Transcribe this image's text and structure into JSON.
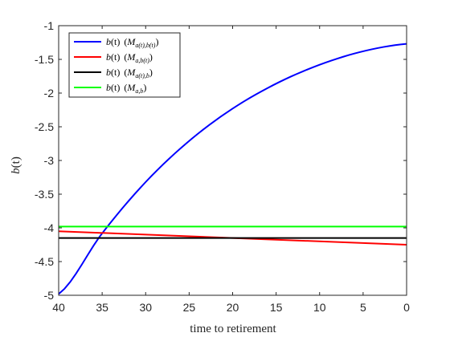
{
  "chart_data": {
    "type": "line",
    "title": "",
    "xlabel": "time to retirement",
    "ylabel": {
      "main": "b",
      "arg": "(t)"
    },
    "xlim": [
      40,
      0
    ],
    "ylim": [
      -5,
      -1
    ],
    "x_reversed": true,
    "x_ticks": [
      "40",
      "35",
      "30",
      "25",
      "20",
      "15",
      "10",
      "5",
      "0"
    ],
    "y_ticks": [
      "-1",
      "-1.5",
      "-2",
      "-2.5",
      "-3",
      "-3.5",
      "-4",
      "-4.5",
      "-5"
    ],
    "grid": false,
    "legend_position": "top-left",
    "series": [
      {
        "legend": {
          "fn": "b",
          "arg": "(t)",
          "m": "M",
          "sub": "a(t),b(t)"
        },
        "color": "#0000ff",
        "x": [
          40,
          35,
          30,
          25,
          20,
          15,
          10,
          5,
          0
        ],
        "y": [
          -4.98,
          -4.08,
          -3.32,
          -2.71,
          -2.23,
          -1.86,
          -1.58,
          -1.38,
          -1.27
        ]
      },
      {
        "legend": {
          "fn": "b",
          "arg": "(t)",
          "m": "M",
          "sub": "a,b(t)"
        },
        "color": "#ff0000",
        "x": [
          40,
          0
        ],
        "y": [
          -4.05,
          -4.25
        ]
      },
      {
        "legend": {
          "fn": "b",
          "arg": "(t)",
          "m": "M",
          "sub": "a(t),b"
        },
        "color": "#000000",
        "x": [
          40,
          0
        ],
        "y": [
          -4.15,
          -4.15
        ]
      },
      {
        "legend": {
          "fn": "b",
          "arg": "(t)",
          "m": "M",
          "sub": "a,b"
        },
        "color": "#00ff00",
        "x": [
          40,
          0
        ],
        "y": [
          -3.98,
          -3.98
        ]
      }
    ]
  }
}
